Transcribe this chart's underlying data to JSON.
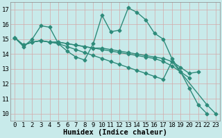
{
  "background_color": "#c8eaea",
  "grid_color": "#b0d8d8",
  "line_color": "#2e8b7a",
  "marker": "D",
  "markersize": 2.5,
  "linewidth": 1.0,
  "xlabel": "Humidex (Indice chaleur)",
  "xlabel_fontsize": 7.5,
  "tick_fontsize": 6.5,
  "xlim": [
    -0.5,
    23.5
  ],
  "ylim": [
    9.5,
    17.5
  ],
  "xticks": [
    0,
    1,
    2,
    3,
    4,
    5,
    6,
    7,
    8,
    9,
    10,
    11,
    12,
    13,
    14,
    15,
    16,
    17,
    18,
    19,
    20,
    21,
    22,
    23
  ],
  "yticks": [
    10,
    11,
    12,
    13,
    14,
    15,
    16,
    17
  ],
  "series": [
    {
      "x": [
        0,
        1,
        2,
        3,
        4,
        5,
        6,
        7,
        8,
        9,
        10,
        11,
        12,
        13,
        14,
        15,
        16,
        17,
        18,
        19,
        20,
        21,
        22
      ],
      "y": [
        15.1,
        14.5,
        15.0,
        15.9,
        15.8,
        14.7,
        14.2,
        13.8,
        13.6,
        14.7,
        16.6,
        15.5,
        15.6,
        17.1,
        16.8,
        16.3,
        15.4,
        15.0,
        13.7,
        12.8,
        11.7,
        10.6,
        10.0
      ]
    },
    {
      "x": [
        0,
        1,
        2,
        3,
        4,
        5,
        6,
        7,
        8,
        9,
        10,
        11,
        12,
        13,
        14,
        15,
        16,
        17,
        18,
        19,
        20,
        21
      ],
      "y": [
        15.1,
        14.6,
        14.8,
        14.9,
        14.8,
        14.8,
        14.7,
        14.6,
        14.5,
        14.4,
        14.4,
        14.3,
        14.2,
        14.1,
        14.0,
        13.9,
        13.8,
        13.7,
        13.5,
        13.1,
        12.7,
        12.8
      ]
    },
    {
      "x": [
        0,
        1,
        2,
        3,
        4,
        5,
        6,
        7,
        8,
        9,
        10,
        11,
        12,
        13,
        14,
        15,
        16,
        17,
        18,
        19,
        20
      ],
      "y": [
        15.1,
        14.6,
        14.8,
        14.9,
        14.8,
        14.8,
        14.7,
        14.6,
        14.5,
        14.4,
        14.3,
        14.2,
        14.1,
        14.0,
        13.9,
        13.8,
        13.7,
        13.5,
        13.2,
        12.8,
        12.4
      ]
    },
    {
      "x": [
        0,
        1,
        2,
        3,
        4,
        5,
        6,
        7,
        8,
        9,
        10,
        11,
        12,
        13,
        14,
        15,
        16,
        17,
        18,
        22,
        23
      ],
      "y": [
        15.1,
        14.6,
        14.8,
        14.9,
        14.8,
        14.7,
        14.5,
        14.3,
        14.1,
        13.9,
        13.7,
        13.5,
        13.3,
        13.1,
        12.9,
        12.7,
        12.5,
        12.3,
        13.5,
        10.6,
        10.0
      ]
    }
  ]
}
